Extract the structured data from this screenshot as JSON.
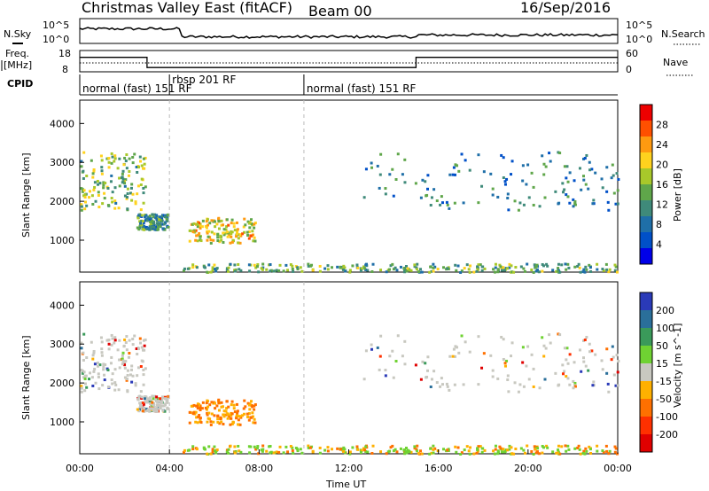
{
  "chart_data": {
    "type": "heatmap",
    "title": "Christmas Valley East (fitACF)",
    "beam": "Beam 00",
    "date": "16/Sep/2016",
    "xlabel": "Time UT",
    "x_ticks": [
      "00:00",
      "04:00",
      "08:00",
      "12:00",
      "16:00",
      "20:00",
      "00:00"
    ],
    "xlim_hours": [
      0,
      24
    ],
    "top_panels": {
      "noise": {
        "left_label": "N.Sky",
        "right_label": "N.Search",
        "left_ticks": [
          "10^5",
          "10^0"
        ],
        "right_ticks": [
          "10^5",
          "10^0"
        ]
      },
      "frequency": {
        "left_label_line1": "Freq.",
        "left_label_line2": "[MHz]",
        "right_label": "Nave",
        "left_ticks": [
          "18",
          "8"
        ],
        "right_ticks": [
          "60",
          "0"
        ],
        "freq_segments": [
          {
            "start": 0,
            "end": 3.0,
            "value": 14.8
          },
          {
            "start": 3.0,
            "end": 15.0,
            "value": 10.0
          },
          {
            "start": 15.0,
            "end": 24,
            "value": 14.8
          }
        ]
      },
      "cpid": {
        "label": "CPID",
        "modes": [
          {
            "name": "normal (fast) 151 RF",
            "start_hour": 0
          },
          {
            "name": "rbsp 201 RF",
            "start_hour": 4.0
          },
          {
            "name": "normal (fast) 151 RF",
            "start_hour": 10.0
          }
        ]
      }
    },
    "range_axis": {
      "ylabel": "Slant Range [km]",
      "ylim": [
        180,
        4600
      ],
      "ticks": [
        1000,
        2000,
        3000,
        4000
      ]
    },
    "power_panel": {
      "colorbar_label": "Power [dB]",
      "scale": [
        0,
        32
      ],
      "colorbar_ticks": [
        4,
        8,
        12,
        16,
        20,
        24,
        28
      ],
      "colors": [
        "#0000e8",
        "#0050c8",
        "#1f6fa8",
        "#3f8a7a",
        "#5fa64a",
        "#a8c82a",
        "#ffd21e",
        "#ff9a10",
        "#ff5000",
        "#ee0000"
      ]
    },
    "velocity_panel": {
      "colorbar_label": "Velocity [m s^-1]",
      "colorbar_ticks": [
        200,
        100,
        50,
        15,
        -15,
        -50,
        -100,
        -200
      ],
      "colors": [
        "#2a3ab8",
        "#2a6f9a",
        "#3a9a5a",
        "#6fd232",
        "#c8c8c0",
        "#ffb000",
        "#ff7000",
        "#ff3000",
        "#e00000"
      ]
    },
    "echo_regions": [
      {
        "name": "early-ionospheric-band",
        "t0": 0.0,
        "t1": 2.9,
        "r0": 1800,
        "r1": 3300,
        "power": 14,
        "velocity": 0
      },
      {
        "name": "pre-04-patch",
        "t0": 2.5,
        "t1": 3.9,
        "r0": 1300,
        "r1": 1700,
        "power": 10,
        "velocity": 0
      },
      {
        "name": "morning-strong-patch",
        "t0": 4.8,
        "t1": 7.8,
        "r0": 950,
        "r1": 1600,
        "power": 18,
        "velocity": -30
      },
      {
        "name": "late-ionospheric-band",
        "t0": 12.6,
        "t1": 24.0,
        "r0": 1800,
        "r1": 3300,
        "power": 8,
        "velocity": 0
      },
      {
        "name": "ground-scatter-near-range",
        "t0": 4.5,
        "t1": 24.0,
        "r0": 200,
        "r1": 420,
        "power": 12,
        "velocity": -40
      }
    ]
  }
}
